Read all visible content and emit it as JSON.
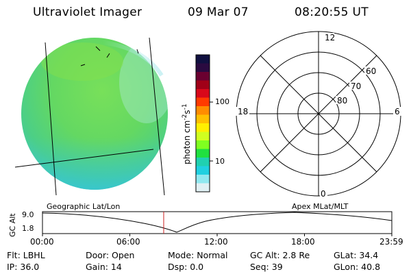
{
  "header": {
    "title": "Ultraviolet Imager",
    "date": "09 Mar 07",
    "time": "08:20:55 UT"
  },
  "colorbar": {
    "label": "photon cm",
    "label_sup1": "-2",
    "label_mid": "s",
    "label_sup2": "-1",
    "ticks": [
      "100",
      "10"
    ],
    "colors": [
      "#101040",
      "#2a0a40",
      "#6a0030",
      "#a00018",
      "#d8081a",
      "#ff3a00",
      "#ff8c00",
      "#ffc000",
      "#fff000",
      "#d0ff20",
      "#80ff20",
      "#20e040",
      "#20d0b0",
      "#20d0e0",
      "#90e8f0",
      "#e0f0f4"
    ]
  },
  "polar_plot": {
    "mlt_labels": {
      "top": "12",
      "left": "18",
      "right": "6",
      "bottom": "0"
    },
    "lat_labels": [
      "60",
      "70",
      "80"
    ]
  },
  "alt_plot": {
    "left_title": "Geographic Lat/Lon",
    "right_title": "Apex MLat/MLT",
    "y_axis_label": "GC Alt",
    "y_ticks": [
      "9.0",
      "1.8"
    ],
    "x_ticks": [
      "00:00",
      "06:00",
      "12:00",
      "18:00",
      "23:59"
    ],
    "current_time_fraction": 0.347
  },
  "info": {
    "flt": "Flt: LBHL",
    "door": "Door: Open",
    "mode": "Mode: Normal",
    "gc_alt": "GC Alt: 2.8 Re",
    "glat": "GLat:  34.4",
    "ip": "IP: 36.0",
    "gain": "Gain: 14",
    "dsp": "Dsp:     0.0",
    "seq": "Seq: 39",
    "glon": "GLon:  40.8"
  }
}
